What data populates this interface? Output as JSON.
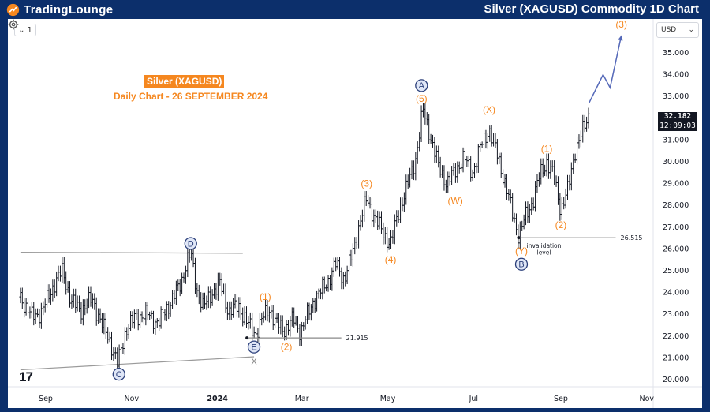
{
  "header": {
    "brand": "TradingLounge",
    "title": "Silver (XAGUSD) Commodity 1D Chart"
  },
  "toolbar": {
    "interval_value": "1",
    "currency": "USD"
  },
  "price_tag": {
    "value": "32.182",
    "countdown": "12:09:03"
  },
  "tv_logo": "17",
  "chart_data": {
    "type": "line",
    "title": "Silver (XAGUSD)",
    "subtitle": "Daily Chart - 26 SEPTEMBER 2024",
    "xlabel": "",
    "ylabel": "",
    "y_ticks": [
      "35.000",
      "34.000",
      "33.000",
      "31.000",
      "30.000",
      "29.000",
      "28.000",
      "27.000",
      "26.000",
      "25.000",
      "24.000",
      "23.000",
      "22.000",
      "21.000",
      "20.000"
    ],
    "ylim": [
      20.0,
      36.0
    ],
    "x_ticks": [
      "Sep",
      "Nov",
      "2024",
      "Mar",
      "May",
      "Jul",
      "Sep",
      "Nov"
    ],
    "x_tick_days": [
      0,
      61,
      122,
      182,
      243,
      304,
      366,
      427
    ],
    "price_path": [
      {
        "d": -18,
        "p": 23.8
      },
      {
        "d": -10,
        "p": 22.9
      },
      {
        "d": -3,
        "p": 23.1
      },
      {
        "d": 6,
        "p": 24.4
      },
      {
        "d": 12,
        "p": 25.0
      },
      {
        "d": 18,
        "p": 23.6
      },
      {
        "d": 25,
        "p": 23.2
      },
      {
        "d": 33,
        "p": 23.7
      },
      {
        "d": 40,
        "p": 22.5
      },
      {
        "d": 45,
        "p": 21.9
      },
      {
        "d": 51,
        "p": 20.7
      },
      {
        "d": 57,
        "p": 22.3
      },
      {
        "d": 64,
        "p": 22.9
      },
      {
        "d": 72,
        "p": 23.0
      },
      {
        "d": 80,
        "p": 22.6
      },
      {
        "d": 88,
        "p": 23.5
      },
      {
        "d": 96,
        "p": 24.4
      },
      {
        "d": 100,
        "p": 25.4
      },
      {
        "d": 103,
        "p": 25.8
      },
      {
        "d": 107,
        "p": 24.2
      },
      {
        "d": 112,
        "p": 23.3
      },
      {
        "d": 118,
        "p": 24.0
      },
      {
        "d": 124,
        "p": 24.4
      },
      {
        "d": 130,
        "p": 23.1
      },
      {
        "d": 137,
        "p": 23.4
      },
      {
        "d": 143,
        "p": 22.6
      },
      {
        "d": 149,
        "p": 22.1
      },
      {
        "d": 155,
        "p": 22.9
      },
      {
        "d": 159,
        "p": 23.3
      },
      {
        "d": 163,
        "p": 22.6
      },
      {
        "d": 170,
        "p": 22.3
      },
      {
        "d": 176,
        "p": 22.8
      },
      {
        "d": 181,
        "p": 22.2
      },
      {
        "d": 185,
        "p": 22.8
      },
      {
        "d": 190,
        "p": 23.6
      },
      {
        "d": 196,
        "p": 24.1
      },
      {
        "d": 201,
        "p": 24.6
      },
      {
        "d": 206,
        "p": 25.3
      },
      {
        "d": 212,
        "p": 24.6
      },
      {
        "d": 218,
        "p": 25.8
      },
      {
        "d": 223,
        "p": 27.2
      },
      {
        "d": 228,
        "p": 28.3
      },
      {
        "d": 234,
        "p": 27.4
      },
      {
        "d": 240,
        "p": 26.7
      },
      {
        "d": 245,
        "p": 26.2
      },
      {
        "d": 251,
        "p": 27.8
      },
      {
        "d": 257,
        "p": 28.9
      },
      {
        "d": 263,
        "p": 30.2
      },
      {
        "d": 268,
        "p": 32.4
      },
      {
        "d": 274,
        "p": 31.0
      },
      {
        "d": 279,
        "p": 29.8
      },
      {
        "d": 285,
        "p": 29.0
      },
      {
        "d": 291,
        "p": 29.6
      },
      {
        "d": 297,
        "p": 30.2
      },
      {
        "d": 303,
        "p": 29.5
      },
      {
        "d": 309,
        "p": 30.7
      },
      {
        "d": 315,
        "p": 31.5
      },
      {
        "d": 321,
        "p": 30.3
      },
      {
        "d": 326,
        "p": 29.1
      },
      {
        "d": 331,
        "p": 27.8
      },
      {
        "d": 336,
        "p": 26.6
      },
      {
        "d": 341,
        "p": 27.5
      },
      {
        "d": 346,
        "p": 28.2
      },
      {
        "d": 351,
        "p": 29.4
      },
      {
        "d": 356,
        "p": 30.0
      },
      {
        "d": 361,
        "p": 29.3
      },
      {
        "d": 366,
        "p": 27.8
      },
      {
        "d": 371,
        "p": 28.7
      },
      {
        "d": 376,
        "p": 30.5
      },
      {
        "d": 381,
        "p": 31.3
      },
      {
        "d": 386,
        "p": 32.2
      }
    ],
    "projection": [
      {
        "d": 386,
        "p": 32.7
      },
      {
        "d": 396,
        "p": 34.0
      },
      {
        "d": 401,
        "p": 33.4
      },
      {
        "d": 409,
        "p": 35.8
      }
    ],
    "triangle_upper": [
      {
        "d": -18,
        "p": 25.85
      },
      {
        "d": 140,
        "p": 25.8
      }
    ],
    "triangle_lower": [
      {
        "d": -18,
        "p": 20.45
      },
      {
        "d": 148,
        "p": 21.05
      }
    ],
    "levels": [
      {
        "value": 21.915,
        "label": "21.915",
        "from_d": 143,
        "to_d": 210
      },
      {
        "value": 26.515,
        "label": "26.515",
        "from_d": 336,
        "to_d": 405
      }
    ],
    "invalidation_note": [
      "invalidation",
      "level"
    ],
    "subtitle_color": "#f5871f",
    "wave_labels": [
      {
        "text": "D",
        "d": 103,
        "p": 26.25,
        "style": "circle-blue"
      },
      {
        "text": "C",
        "d": 52,
        "p": 20.25,
        "style": "circle-blue"
      },
      {
        "text": "E",
        "d": 148,
        "p": 21.5,
        "style": "circle-blue"
      },
      {
        "text": "X",
        "d": 148,
        "p": 20.85,
        "style": "gray"
      },
      {
        "text": "(1)",
        "d": 156,
        "p": 23.8,
        "style": "orange"
      },
      {
        "text": "(2)",
        "d": 171,
        "p": 21.5,
        "style": "orange"
      },
      {
        "text": "(3)",
        "d": 228,
        "p": 29.0,
        "style": "orange"
      },
      {
        "text": "(4)",
        "d": 245,
        "p": 25.5,
        "style": "orange"
      },
      {
        "text": "(5)",
        "d": 267,
        "p": 32.9,
        "style": "orange"
      },
      {
        "text": "A",
        "d": 267,
        "p": 33.5,
        "style": "circle-blue"
      },
      {
        "text": "(W)",
        "d": 291,
        "p": 28.2,
        "style": "orange"
      },
      {
        "text": "(X)",
        "d": 315,
        "p": 32.4,
        "style": "orange"
      },
      {
        "text": "(Y)",
        "d": 338,
        "p": 25.9,
        "style": "orange"
      },
      {
        "text": "B",
        "d": 338,
        "p": 25.3,
        "style": "circle-blue"
      },
      {
        "text": "(1)",
        "d": 356,
        "p": 30.6,
        "style": "orange"
      },
      {
        "text": "(2)",
        "d": 366,
        "p": 27.1,
        "style": "orange"
      },
      {
        "text": "(3)",
        "d": 409,
        "p": 36.3,
        "style": "orange"
      }
    ],
    "colors": {
      "orange": "#f5871f",
      "wave_blue": "#2b3f7a",
      "projection": "#5468b8",
      "gray": "#808080",
      "candles": "#131722",
      "frame": "#0c2f6b"
    },
    "grid": false,
    "legend": "none"
  }
}
